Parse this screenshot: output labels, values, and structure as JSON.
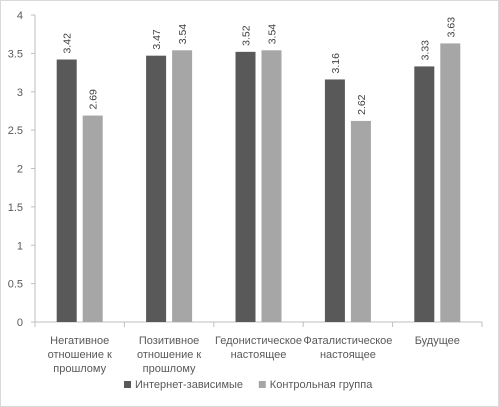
{
  "chart_data": {
    "type": "bar",
    "categories": [
      [
        "Негативное",
        "отношение к",
        "прошлому"
      ],
      [
        "Позитивное",
        "отношение к",
        "прошлому"
      ],
      [
        "Гедонистическое",
        "настоящее"
      ],
      [
        "Фаталистическое",
        "настоящее"
      ],
      [
        "Будущее"
      ]
    ],
    "series": [
      {
        "name": "Интернет-зависимые",
        "values": [
          3.42,
          3.47,
          3.52,
          3.16,
          3.33
        ],
        "value_labels": [
          "3.42",
          "3.47",
          "3.52",
          "3.16",
          "3.33"
        ],
        "color": "#595959"
      },
      {
        "name": "Контрольная группа",
        "values": [
          2.69,
          3.54,
          3.54,
          2.62,
          3.63
        ],
        "value_labels": [
          "2.69",
          "3.54",
          "3.54",
          "2.62",
          "3.63"
        ],
        "color": "#a6a6a6"
      }
    ],
    "ylim": [
      0,
      4
    ],
    "yticks": [
      0,
      0.5,
      1,
      1.5,
      2,
      2.5,
      3,
      3.5,
      4
    ],
    "ytick_labels": [
      "0",
      "0.5",
      "1",
      "1.5",
      "2",
      "2.5",
      "3",
      "3.5",
      "4"
    ],
    "grid": false,
    "legend_position": "bottom"
  }
}
